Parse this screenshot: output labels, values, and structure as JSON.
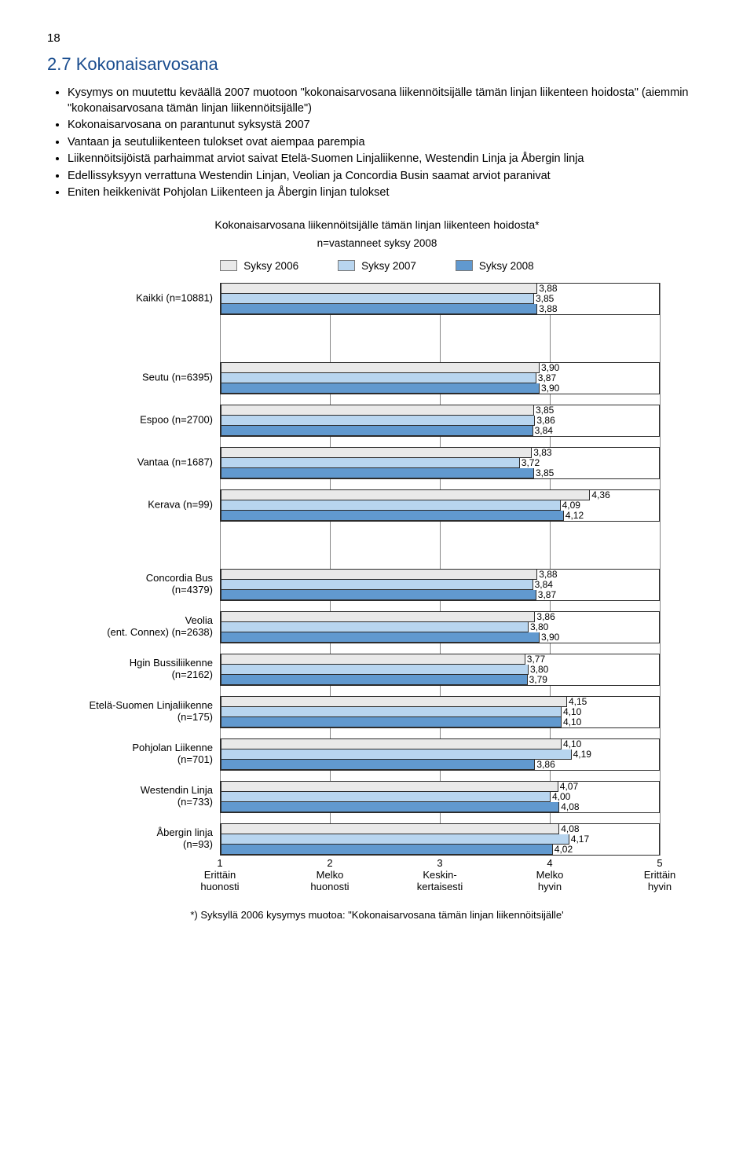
{
  "page_number": "18",
  "heading": "2.7  Kokonaisarvosana",
  "bullets": [
    "Kysymys on muutettu keväällä 2007 muotoon \"kokonaisarvosana liikennöitsijälle tämän linjan liikenteen hoidosta\" (aiemmin \"kokonaisarvosana tämän linjan liikennöitsijälle\")",
    "Kokonaisarvosana on parantunut syksystä 2007",
    "Vantaan ja seutuliikenteen tulokset ovat aiempaa parempia",
    "Liikennöitsijöistä parhaimmat arviot saivat Etelä-Suomen Linjaliikenne, Westendin Linja ja Åbergin linja",
    "Edellissyksyyn verrattuna Westendin Linjan, Veolian ja Concordia Busin saamat arviot paranivat",
    "Eniten heikkenivät Pohjolan Liikenteen ja Åbergin linjan tulokset"
  ],
  "chart": {
    "title": "Kokonaisarvosana liikennöitsijälle tämän linjan liikenteen hoidosta*",
    "subtitle": "n=vastanneet syksy 2008",
    "legend": [
      {
        "label": "Syksy 2006",
        "color": "#e9e9e9"
      },
      {
        "label": "Syksy 2007",
        "color": "#b8d5ef"
      },
      {
        "label": "Syksy 2008",
        "color": "#6199cf"
      }
    ],
    "x_min": 1,
    "x_max": 5,
    "ticks": [
      {
        "pos": 1,
        "num": "1",
        "label": "Erittäin huonosti"
      },
      {
        "pos": 2,
        "num": "2",
        "label": "Melko huonosti"
      },
      {
        "pos": 3,
        "num": "3",
        "label": "Keskin-kertaisesti"
      },
      {
        "pos": 4,
        "num": "4",
        "label": "Melko hyvin"
      },
      {
        "pos": 5,
        "num": "5",
        "label": "Erittäin hyvin"
      }
    ],
    "sections": [
      [
        {
          "label": "Kaikki (n=10881)",
          "vals": [
            3.88,
            3.85,
            3.88
          ],
          "txt": [
            "3,88",
            "3,85",
            "3,88"
          ]
        }
      ],
      [
        {
          "label": "Seutu (n=6395)",
          "vals": [
            3.9,
            3.87,
            3.9
          ],
          "txt": [
            "3,90",
            "3,87",
            "3,90"
          ]
        },
        {
          "label": "Espoo (n=2700)",
          "vals": [
            3.85,
            3.86,
            3.84
          ],
          "txt": [
            "3,85",
            "3,86",
            "3,84"
          ]
        },
        {
          "label": "Vantaa (n=1687)",
          "vals": [
            3.83,
            3.72,
            3.85
          ],
          "txt": [
            "3,83",
            "3,72",
            "3,85"
          ]
        },
        {
          "label": "Kerava (n=99)",
          "vals": [
            4.36,
            4.09,
            4.12
          ],
          "txt": [
            "4,36",
            "4,09",
            "4,12"
          ]
        }
      ],
      [
        {
          "label": "Concordia Bus (n=4379)",
          "vals": [
            3.88,
            3.84,
            3.87
          ],
          "txt": [
            "3,88",
            "3,84",
            "3,87"
          ]
        },
        {
          "label": "Veolia (ent. Connex) (n=2638)",
          "vals": [
            3.86,
            3.8,
            3.9
          ],
          "txt": [
            "3,86",
            "3,80",
            "3,90"
          ]
        },
        {
          "label": "Hgin Bussiliikenne (n=2162)",
          "vals": [
            3.77,
            3.8,
            3.79
          ],
          "txt": [
            "3,77",
            "3,80",
            "3,79"
          ]
        },
        {
          "label": "Etelä-Suomen Linjaliikenne (n=175)",
          "vals": [
            4.15,
            4.1,
            4.1
          ],
          "txt": [
            "4,15",
            "4,10",
            "4,10"
          ]
        },
        {
          "label": "Pohjolan Liikenne (n=701)",
          "vals": [
            4.1,
            4.19,
            3.86
          ],
          "txt": [
            "4,10",
            "4,19",
            "3,86"
          ]
        },
        {
          "label": "Westendin Linja (n=733)",
          "vals": [
            4.07,
            4.0,
            4.08
          ],
          "txt": [
            "4,07",
            "4,00",
            "4,08"
          ]
        },
        {
          "label": "Åbergin linja (n=93)",
          "vals": [
            4.08,
            4.17,
            4.02
          ],
          "txt": [
            "4,08",
            "4,17",
            "4,02"
          ]
        }
      ]
    ],
    "footnote": "*) Syksyllä 2006 kysymys muotoa: \"Kokonaisarvosana tämän linjan liikennöitsijälle'"
  }
}
